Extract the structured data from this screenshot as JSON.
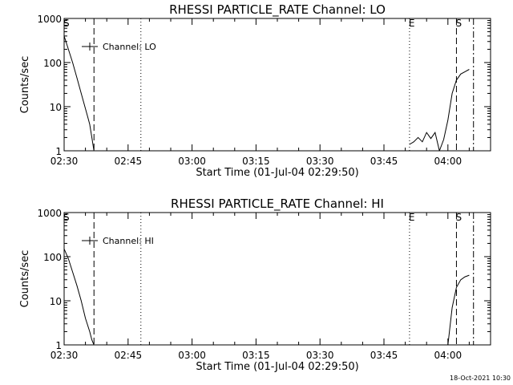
{
  "chart_data": [
    {
      "type": "line",
      "title": "RHESSI PARTICLE_RATE Channel: LO",
      "xlabel": "Start Time (01-Jul-04 02:29:50)",
      "ylabel": "Counts/sec",
      "y_scale": "log",
      "ylim": [
        1,
        1000
      ],
      "xlim": [
        "02:30",
        "04:10"
      ],
      "x_tick_labels": [
        "02:30",
        "02:45",
        "03:00",
        "03:15",
        "03:30",
        "03:45",
        "04:00"
      ],
      "y_tick_labels": [
        "1",
        "10",
        "100",
        "1000"
      ],
      "legend": "top-left",
      "series": [
        {
          "name": "Channel: LO",
          "x": [
            "02:30",
            "02:31",
            "02:32",
            "02:33",
            "02:34",
            "02:35",
            "02:35.5",
            "02:36",
            "02:36.5",
            "02:37",
            "03:51",
            "03:52",
            "03:53",
            "03:54",
            "03:55",
            "03:56",
            "03:57",
            "03:58",
            "03:59",
            "04:00",
            "04:01",
            "04:02",
            "04:03",
            "04:04",
            "04:05"
          ],
          "y": [
            400,
            200,
            100,
            45,
            20,
            9,
            6,
            4,
            2,
            1,
            1.4,
            1.6,
            2.0,
            1.6,
            2.6,
            1.9,
            2.6,
            1.0,
            1.8,
            5,
            20,
            40,
            55,
            62,
            70
          ]
        }
      ],
      "markers": [
        {
          "label": "S",
          "style": "dashed",
          "x": "02:30"
        },
        {
          "label": "",
          "style": "dashed",
          "x": "02:37"
        },
        {
          "label": "",
          "style": "dotted",
          "x": "02:48"
        },
        {
          "label": "E",
          "style": "dotted",
          "x": "03:51"
        },
        {
          "label": "S",
          "style": "dashed",
          "x": "04:02"
        },
        {
          "label": "",
          "style": "dashdot",
          "x": "04:06"
        }
      ]
    },
    {
      "type": "line",
      "title": "RHESSI PARTICLE_RATE Channel: HI",
      "xlabel": "Start Time (01-Jul-04 02:29:50)",
      "ylabel": "Counts/sec",
      "y_scale": "log",
      "ylim": [
        1,
        1000
      ],
      "xlim": [
        "02:30",
        "04:10"
      ],
      "x_tick_labels": [
        "02:30",
        "02:45",
        "03:00",
        "03:15",
        "03:30",
        "03:45",
        "04:00"
      ],
      "y_tick_labels": [
        "1",
        "10",
        "100",
        "1000"
      ],
      "legend": "top-left",
      "series": [
        {
          "name": "Channel: HI",
          "x": [
            "02:30",
            "02:31",
            "02:32",
            "02:33",
            "02:34",
            "02:35",
            "02:36",
            "02:36.5",
            "02:37",
            "04:00",
            "04:01",
            "04:02",
            "04:03",
            "04:04",
            "04:05"
          ],
          "y": [
            150,
            90,
            45,
            22,
            10,
            4,
            2,
            1.3,
            1,
            1,
            7,
            20,
            30,
            35,
            38
          ]
        }
      ],
      "markers": [
        {
          "label": "S",
          "style": "dashed",
          "x": "02:30"
        },
        {
          "label": "",
          "style": "dashed",
          "x": "02:37"
        },
        {
          "label": "",
          "style": "dotted",
          "x": "02:48"
        },
        {
          "label": "E",
          "style": "dotted",
          "x": "03:51"
        },
        {
          "label": "S",
          "style": "dashed",
          "x": "04:02"
        },
        {
          "label": "",
          "style": "dashdot",
          "x": "04:06"
        }
      ]
    }
  ],
  "footer": "18-Oct-2021 10:30"
}
